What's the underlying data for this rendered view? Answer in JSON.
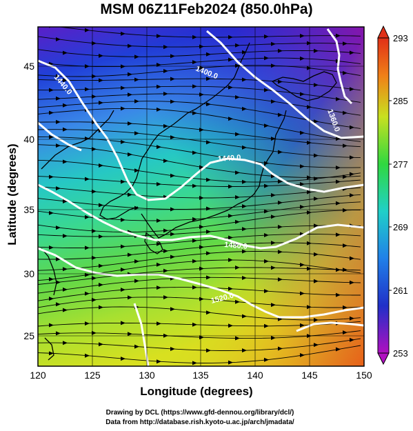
{
  "title": "MSM 06Z11Feb2024 (850.0hPa)",
  "x_axis": {
    "label": "Longitude (degrees)",
    "ticks": [
      "120",
      "125",
      "130",
      "135",
      "140",
      "145",
      "150"
    ]
  },
  "y_axis": {
    "label": "Latitude  (degrees)",
    "ticks": [
      "45",
      "40",
      "35",
      "30",
      "25"
    ]
  },
  "colorbar": {
    "ticks": [
      "293",
      "285",
      "277",
      "269",
      "261",
      "253"
    ]
  },
  "contour_labels": [
    "1400.0",
    "1440.0",
    "1360.0",
    "1480.0",
    "1520.0",
    "1440.0"
  ],
  "credits": [
    "Drawing by DCL (https://www.gfd-dennou.org/library/dcl/)",
    "Data from http://database.rish.kyoto-u.ac.jp/arch/jmadata/"
  ],
  "colors": {
    "cold": "#7a18b8",
    "mid": "#19c8c0",
    "warm": "#e86018",
    "contour": "#ffffff"
  }
}
